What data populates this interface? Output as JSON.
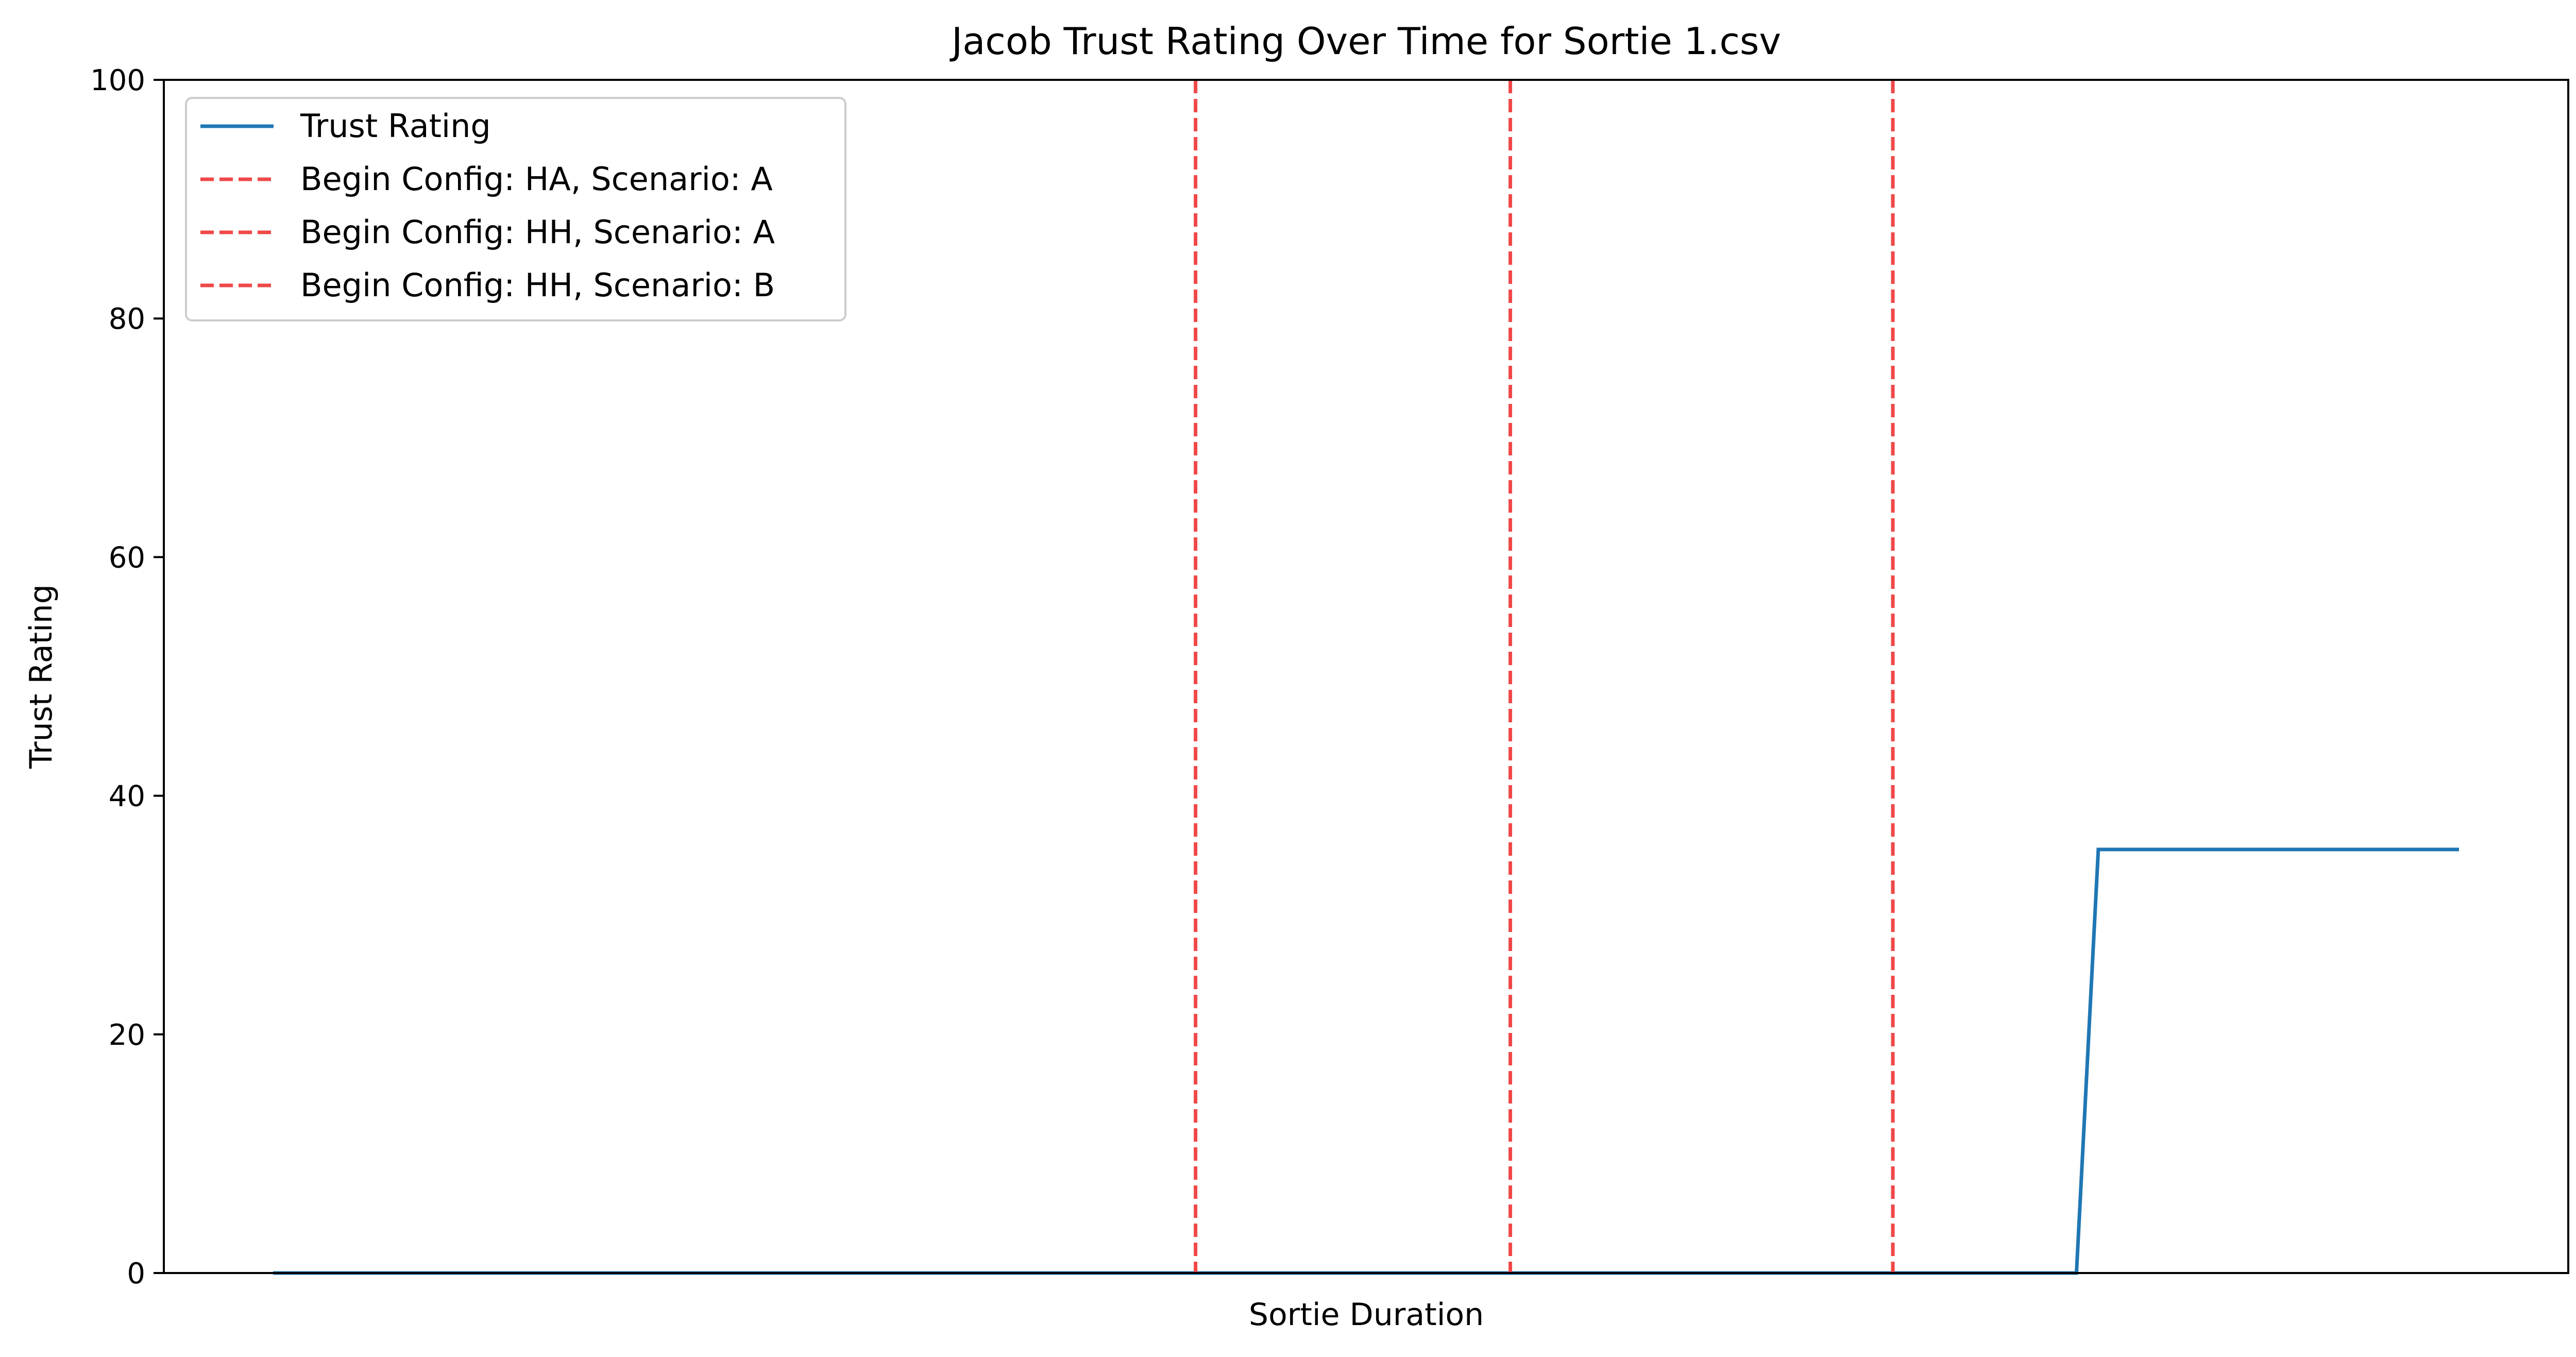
{
  "chart_data": {
    "type": "line",
    "title": "Jacob Trust Rating Over Time for Sortie 1.csv",
    "xlabel": "Sortie Duration",
    "ylabel": "Trust Rating",
    "xlim": [
      -0.05,
      1.05
    ],
    "ylim": [
      0,
      100
    ],
    "yticks": [
      "0",
      "20",
      "40",
      "60",
      "80",
      "100"
    ],
    "xticks_visible": false,
    "grid": false,
    "legend_position": "top-left",
    "series": [
      {
        "name": "Trust Rating",
        "color": "#1f77b4",
        "style": "solid",
        "x": [
          0.0,
          0.825,
          0.835,
          1.0
        ],
        "y": [
          0,
          0,
          35.5,
          35.5
        ]
      }
    ],
    "vlines": [
      {
        "name": "Begin Config: HA, Scenario: A",
        "x": 0.422,
        "color": "#f04848",
        "style": "dashed"
      },
      {
        "name": "Begin Config: HH, Scenario: A",
        "x": 0.566,
        "color": "#f04848",
        "style": "dashed"
      },
      {
        "name": "Begin Config: HH, Scenario: B",
        "x": 0.741,
        "color": "#f04848",
        "style": "dashed"
      }
    ]
  }
}
